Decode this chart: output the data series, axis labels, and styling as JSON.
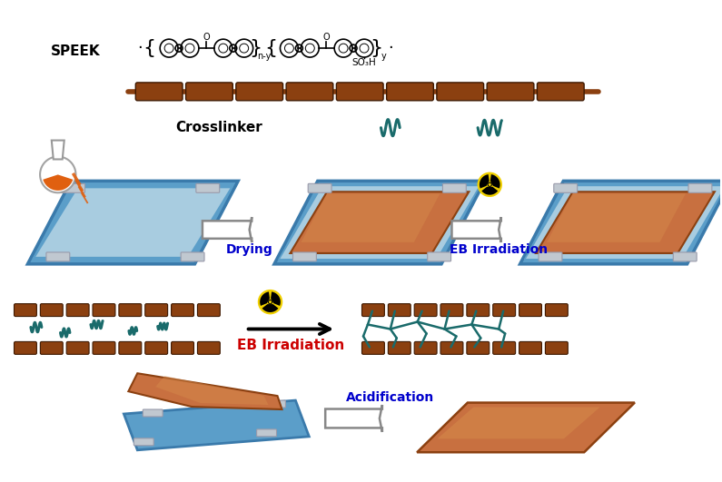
{
  "bg_color": "#ffffff",
  "speek_label": "SPEEK",
  "crosslinker_label": "Crosslinker",
  "drying_label": "Drying",
  "eb_irradiation_label": "EB Irradiation",
  "eb_irradiation_label2": "EB Irradiation",
  "acidification_label": "Acidification",
  "mem_brown_light": "#c87040",
  "mem_brown_dark": "#8b4010",
  "mem_brown_mid": "#a85520",
  "plate_blue": "#5b9ec9",
  "plate_blue_dark": "#3a7aab",
  "plate_blue_light": "#a8cce0",
  "plate_silver": "#c0c8d0",
  "chain_brown": "#8b4010",
  "chain_edge": "#3d1800",
  "crosslink_teal": "#1a6b6b",
  "arrow_fill": "#ffffff",
  "arrow_edge": "#888888",
  "radiation_yellow": "#f0d000",
  "flask_orange": "#e06010",
  "label_blue": "#0000cc",
  "label_red": "#cc0000",
  "black": "#000000"
}
